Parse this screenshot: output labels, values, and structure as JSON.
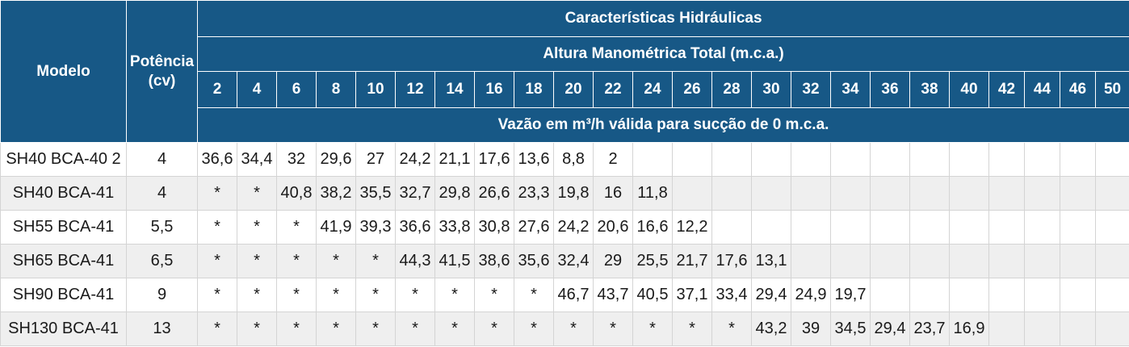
{
  "headers": {
    "modelo": "Modelo",
    "potencia": "Potência (cv)",
    "caracteristicas": "Características Hidráulicas",
    "altura": "Altura Manométrica Total (m.c.a.)",
    "vazao": "Vazão em m³/h válida para sucção de 0 m.c.a.",
    "heights": [
      "2",
      "4",
      "6",
      "8",
      "10",
      "12",
      "14",
      "16",
      "18",
      "20",
      "22",
      "24",
      "26",
      "28",
      "30",
      "32",
      "34",
      "36",
      "38",
      "40",
      "42",
      "44",
      "46",
      "50"
    ]
  },
  "rows": [
    {
      "model": "SH40 BCA-40 2",
      "power": "4",
      "values": [
        "36,6",
        "34,4",
        "32",
        "29,6",
        "27",
        "24,2",
        "21,1",
        "17,6",
        "13,6",
        "8,8",
        "2",
        "",
        "",
        "",
        "",
        "",
        "",
        "",
        "",
        "",
        "",
        "",
        "",
        ""
      ]
    },
    {
      "model": "SH40 BCA-41",
      "power": "4",
      "values": [
        "*",
        "*",
        "40,8",
        "38,2",
        "35,5",
        "32,7",
        "29,8",
        "26,6",
        "23,3",
        "19,8",
        "16",
        "11,8",
        "",
        "",
        "",
        "",
        "",
        "",
        "",
        "",
        "",
        "",
        "",
        ""
      ]
    },
    {
      "model": "SH55 BCA-41",
      "power": "5,5",
      "values": [
        "*",
        "*",
        "*",
        "41,9",
        "39,3",
        "36,6",
        "33,8",
        "30,8",
        "27,6",
        "24,2",
        "20,6",
        "16,6",
        "12,2",
        "",
        "",
        "",
        "",
        "",
        "",
        "",
        "",
        "",
        "",
        ""
      ]
    },
    {
      "model": "SH65 BCA-41",
      "power": "6,5",
      "values": [
        "*",
        "*",
        "*",
        "*",
        "*",
        "44,3",
        "41,5",
        "38,6",
        "35,6",
        "32,4",
        "29",
        "25,5",
        "21,7",
        "17,6",
        "13,1",
        "",
        "",
        "",
        "",
        "",
        "",
        "",
        "",
        ""
      ]
    },
    {
      "model": "SH90 BCA-41",
      "power": "9",
      "values": [
        "*",
        "*",
        "*",
        "*",
        "*",
        "*",
        "*",
        "*",
        "*",
        "46,7",
        "43,7",
        "40,5",
        "37,1",
        "33,4",
        "29,4",
        "24,9",
        "19,7",
        "",
        "",
        "",
        "",
        "",
        "",
        ""
      ]
    },
    {
      "model": "SH130 BCA-41",
      "power": "13",
      "values": [
        "*",
        "*",
        "*",
        "*",
        "*",
        "*",
        "*",
        "*",
        "*",
        "*",
        "*",
        "*",
        "*",
        "*",
        "43,2",
        "39",
        "34,5",
        "29,4",
        "23,7",
        "16,9",
        "",
        "",
        "",
        ""
      ]
    }
  ]
}
